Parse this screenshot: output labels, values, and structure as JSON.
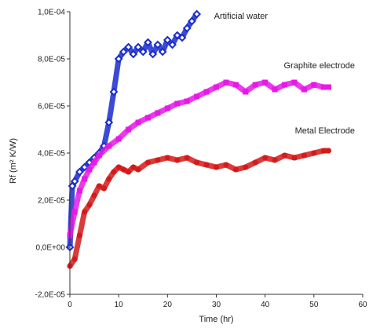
{
  "chart_data": {
    "type": "line",
    "xlabel": "Time (hr)",
    "ylabel": "Rf (m² K/W)",
    "xlim": [
      0,
      60
    ],
    "ylim": [
      -2e-05,
      0.0001
    ],
    "x_ticks": [
      "0",
      "10",
      "20",
      "30",
      "40",
      "50",
      "60"
    ],
    "y_ticks": [
      "-2,0E-05",
      "0,0E+00",
      "2,0E-05",
      "4,0E-05",
      "6,0E-05",
      "8,0E-05",
      "1,0E-04"
    ],
    "grid": false,
    "series": [
      {
        "name": "Artificial water",
        "color": "#1a2ccc",
        "marker": "diamond",
        "x": [
          0,
          0.5,
          1,
          2,
          3,
          4,
          5,
          6,
          7,
          8,
          9,
          10,
          11,
          12,
          13,
          14,
          15,
          16,
          17,
          18,
          19,
          20,
          21,
          22,
          23,
          24,
          25,
          26
        ],
        "y": [
          0.0,
          2.6e-05,
          2.8e-05,
          3.2e-05,
          3.4e-05,
          3.6e-05,
          3.8e-05,
          4e-05,
          4.3e-05,
          5.3e-05,
          6.6e-05,
          8e-05,
          8.3e-05,
          8.5e-05,
          8.2e-05,
          8.5e-05,
          8.3e-05,
          8.7e-05,
          8.2e-05,
          8.6e-05,
          8.3e-05,
          8.8e-05,
          8.6e-05,
          9e-05,
          8.9e-05,
          9.3e-05,
          9.6e-05,
          9.9e-05
        ]
      },
      {
        "name": "Graphite electrode",
        "color": "#e619e6",
        "marker": "square",
        "x": [
          0,
          1,
          2,
          3,
          4,
          5,
          6,
          8,
          10,
          12,
          14,
          16,
          18,
          20,
          22,
          24,
          26,
          28,
          30,
          32,
          34,
          36,
          38,
          40,
          42,
          44,
          46,
          48,
          50,
          52,
          53
        ],
        "y": [
          5e-06,
          1.5e-05,
          2.4e-05,
          2.9e-05,
          3.3e-05,
          3.6e-05,
          3.9e-05,
          4.3e-05,
          4.6e-05,
          5e-05,
          5.3e-05,
          5.5e-05,
          5.7e-05,
          5.9e-05,
          6.1e-05,
          6.2e-05,
          6.4e-05,
          6.6e-05,
          6.8e-05,
          7e-05,
          6.9e-05,
          6.6e-05,
          6.9e-05,
          7e-05,
          6.7e-05,
          6.9e-05,
          7e-05,
          6.7e-05,
          6.9e-05,
          6.8e-05,
          6.8e-05
        ]
      },
      {
        "name": "Metal Electrode",
        "color": "#d41a1a",
        "marker": "circle",
        "x": [
          0,
          1,
          2,
          3,
          4,
          5,
          6,
          7,
          8,
          9,
          10,
          11,
          12,
          13,
          14,
          16,
          18,
          20,
          22,
          24,
          26,
          28,
          30,
          32,
          34,
          36,
          38,
          40,
          42,
          44,
          46,
          48,
          50,
          52,
          53
        ],
        "y": [
          -8e-06,
          -5e-06,
          5e-06,
          1.5e-05,
          1.8e-05,
          2.2e-05,
          2.6e-05,
          2.5e-05,
          2.9e-05,
          3.2e-05,
          3.4e-05,
          3.3e-05,
          3.2e-05,
          3.4e-05,
          3.3e-05,
          3.6e-05,
          3.7e-05,
          3.8e-05,
          3.7e-05,
          3.8e-05,
          3.6e-05,
          3.5e-05,
          3.4e-05,
          3.5e-05,
          3.3e-05,
          3.4e-05,
          3.6e-05,
          3.8e-05,
          3.7e-05,
          3.9e-05,
          3.8e-05,
          3.9e-05,
          4e-05,
          4.1e-05,
          4.1e-05
        ]
      }
    ]
  }
}
